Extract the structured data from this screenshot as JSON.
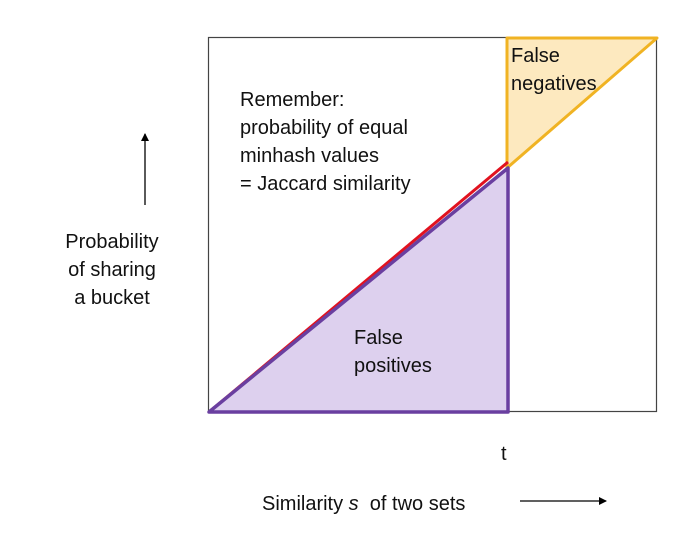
{
  "diagram": {
    "y_axis_label": [
      "Probability",
      "of sharing",
      "a bucket"
    ],
    "note_lines": [
      "Remember:",
      "probability of equal",
      "minhash values",
      "= Jaccard similarity"
    ],
    "false_positives_lines": [
      "False",
      "positives"
    ],
    "false_negatives_lines": [
      "False",
      "negatives"
    ],
    "threshold_label": "t",
    "x_axis_label": {
      "prefix": "Similarity ",
      "variable": "s",
      "suffix": "  of two sets"
    },
    "colors": {
      "frame": "#444444",
      "false_positives_fill": "#ddd0ee",
      "false_positives_stroke": "#6a3fa0",
      "false_negatives_fill": "#fde9bf",
      "false_negatives_stroke": "#f0b323",
      "diagonal": "#e1121f",
      "arrow": "#000000"
    }
  }
}
